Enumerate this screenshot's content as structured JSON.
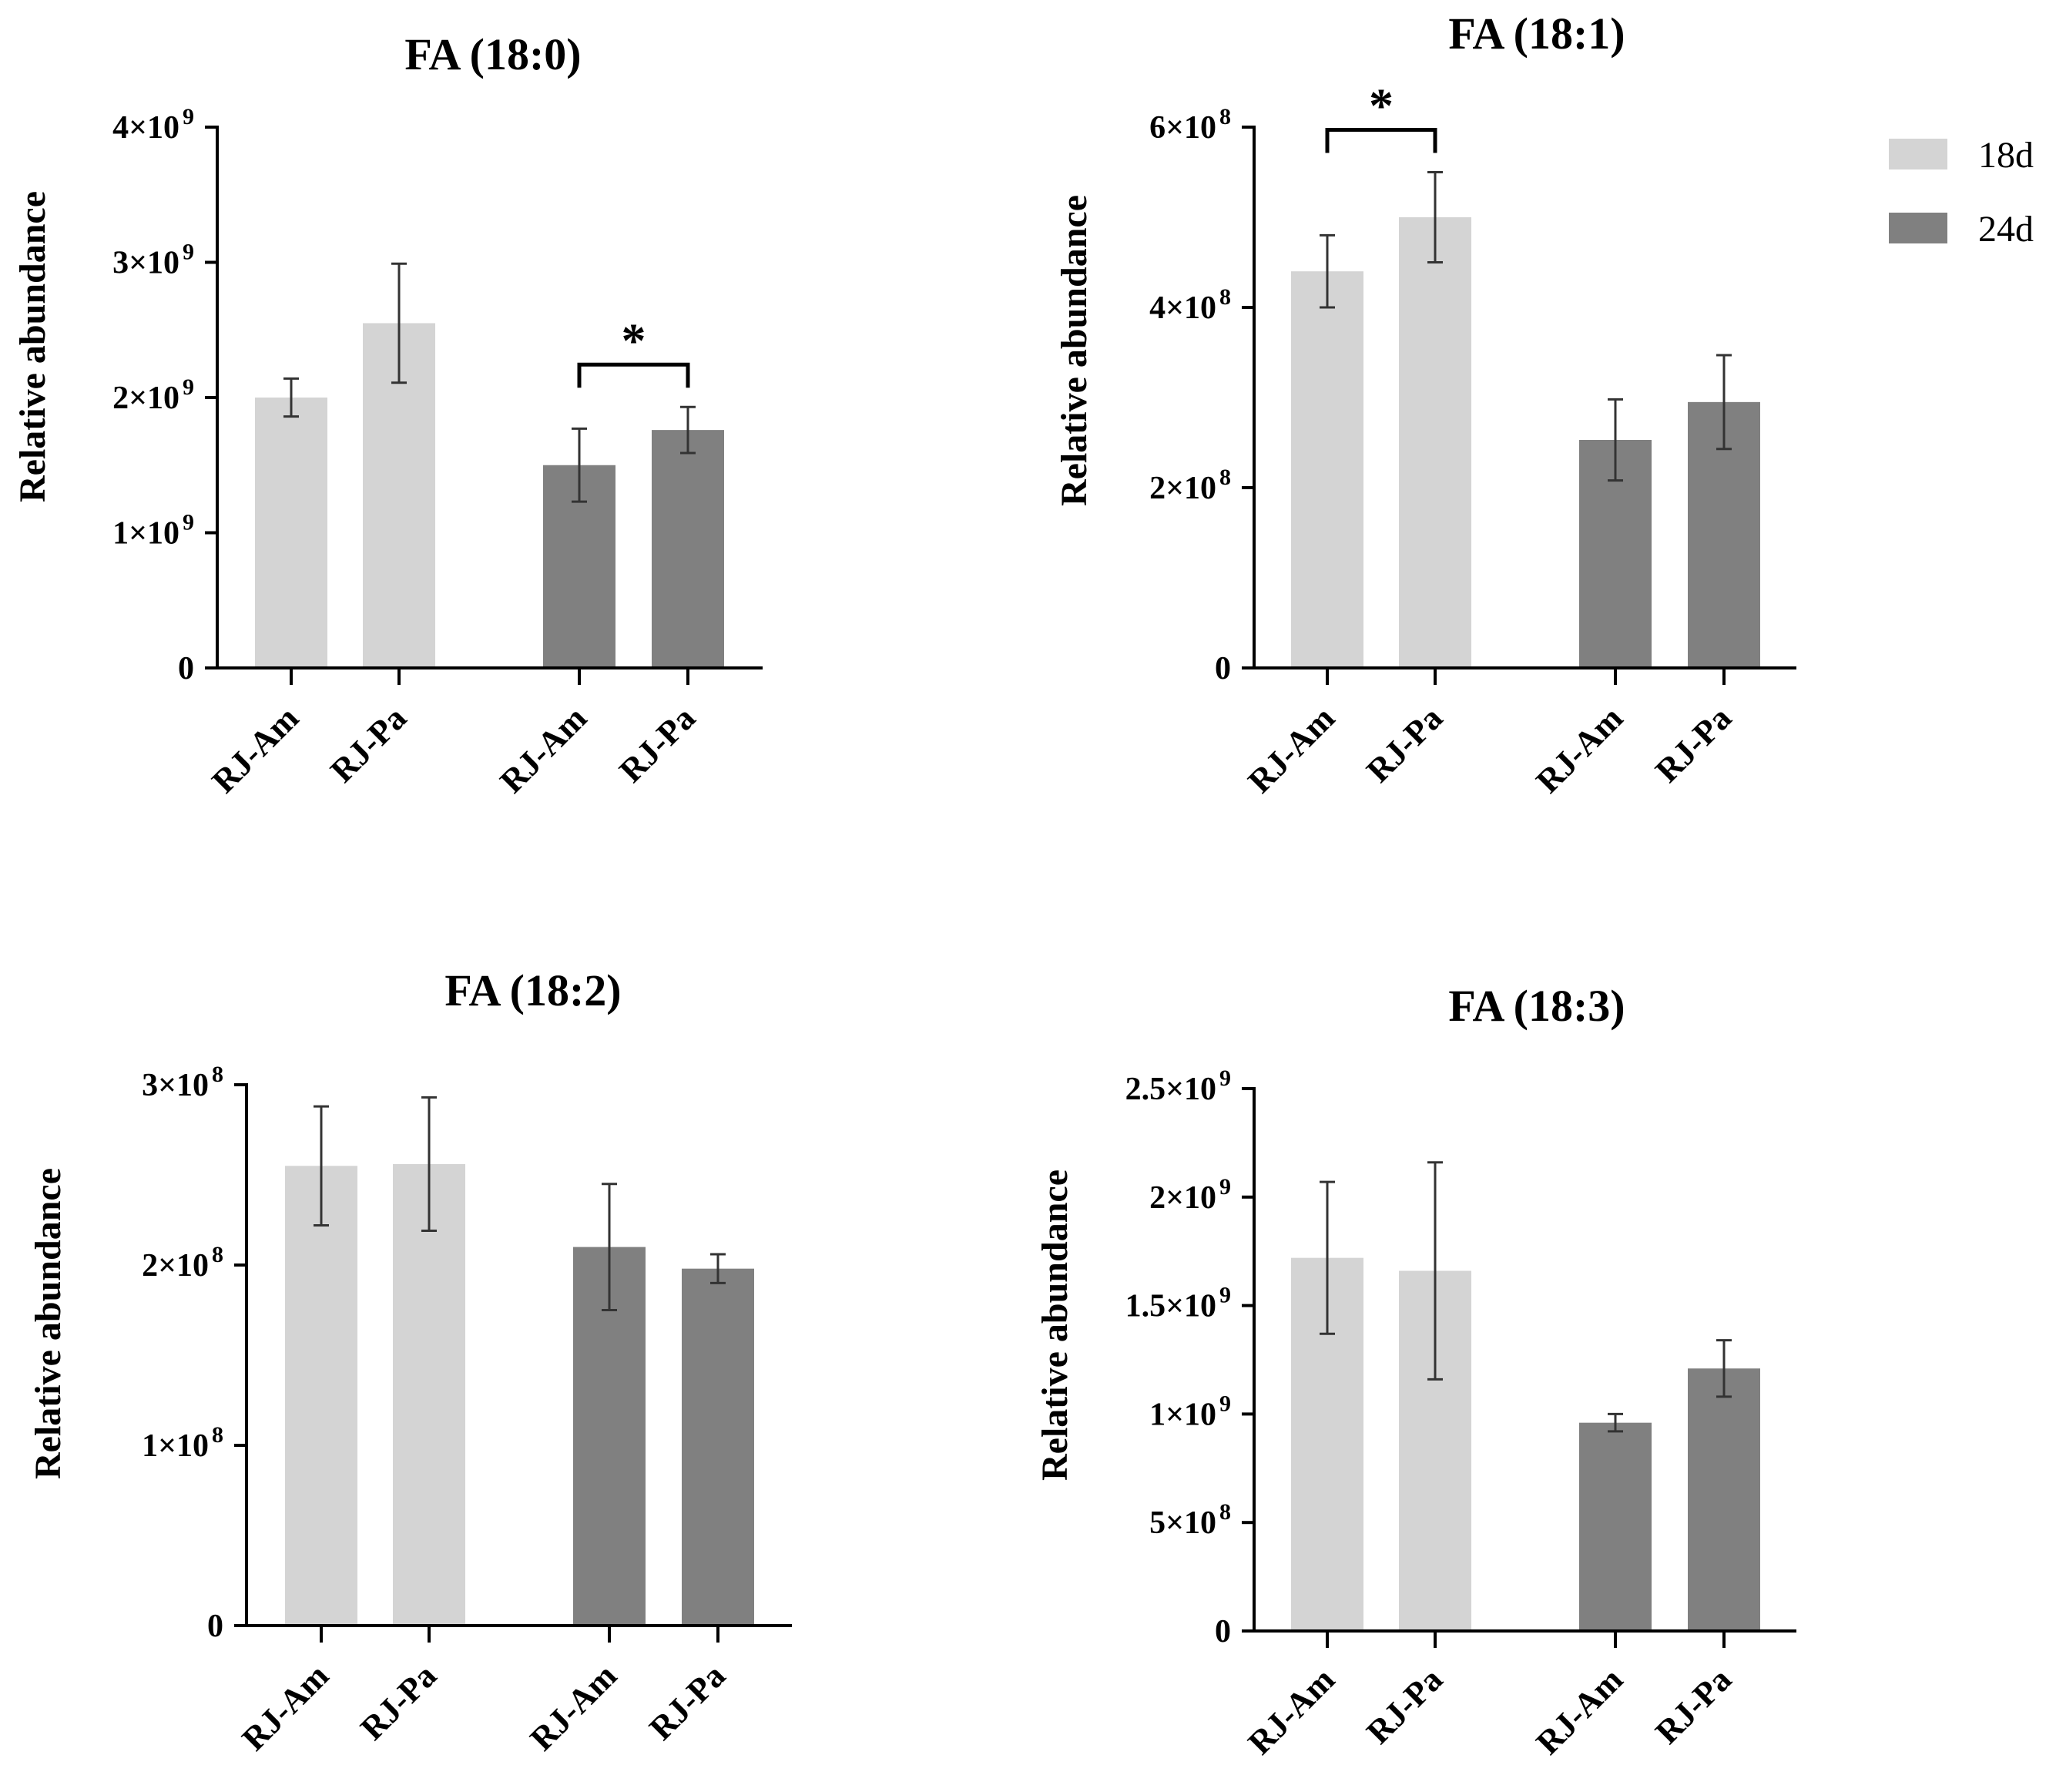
{
  "chart_data": [
    {
      "type": "bar",
      "title": "FA (18:0)",
      "ylabel": "Relative abundance",
      "xlabel": "",
      "categories": [
        "RJ-Am",
        "RJ-Pa",
        "RJ-Am",
        "RJ-Pa"
      ],
      "groups": [
        "18d",
        "18d",
        "24d",
        "24d"
      ],
      "values": [
        2000000000.0,
        2550000000.0,
        1500000000.0,
        1760000000.0
      ],
      "errors": [
        140000000.0,
        440000000.0,
        270000000.0,
        170000000.0
      ],
      "ylim": [
        0,
        4000000000.0
      ],
      "yticks": [
        0,
        1000000000.0,
        2000000000.0,
        3000000000.0,
        4000000000.0
      ],
      "ytick_labels": [
        {
          "mantissa": "0",
          "exponent": ""
        },
        {
          "mantissa": "1×10",
          "exponent": "9"
        },
        {
          "mantissa": "2×10",
          "exponent": "9"
        },
        {
          "mantissa": "3×10",
          "exponent": "9"
        },
        {
          "mantissa": "4×10",
          "exponent": "9"
        }
      ],
      "significance": [
        {
          "between": [
            2,
            3
          ],
          "label": "*"
        }
      ]
    },
    {
      "type": "bar",
      "title": "FA (18:1)",
      "ylabel": "Relative abundance",
      "xlabel": "",
      "categories": [
        "RJ-Am",
        "RJ-Pa",
        "RJ-Am",
        "RJ-Pa"
      ],
      "groups": [
        "18d",
        "18d",
        "24d",
        "24d"
      ],
      "values": [
        440000000.0,
        500000000.0,
        253000000.0,
        295000000.0
      ],
      "errors": [
        40000000.0,
        50000000.0,
        45000000.0,
        52000000.0
      ],
      "ylim": [
        0,
        600000000.0
      ],
      "yticks": [
        0,
        200000000.0,
        400000000.0,
        600000000.0
      ],
      "ytick_labels": [
        {
          "mantissa": "0",
          "exponent": ""
        },
        {
          "mantissa": "2×10",
          "exponent": "8"
        },
        {
          "mantissa": "4×10",
          "exponent": "8"
        },
        {
          "mantissa": "6×10",
          "exponent": "8"
        }
      ],
      "significance": [
        {
          "between": [
            0,
            1
          ],
          "label": "*"
        }
      ]
    },
    {
      "type": "bar",
      "title": "FA (18:2)",
      "ylabel": "Relative abundance",
      "xlabel": "",
      "categories": [
        "RJ-Am",
        "RJ-Pa",
        "RJ-Am",
        "RJ-Pa"
      ],
      "groups": [
        "18d",
        "18d",
        "24d",
        "24d"
      ],
      "values": [
        255000000.0,
        256000000.0,
        210000000.0,
        198000000.0
      ],
      "errors": [
        33000000.0,
        37000000.0,
        35000000.0,
        8000000.0
      ],
      "ylim": [
        0,
        300000000.0
      ],
      "yticks": [
        0,
        100000000.0,
        200000000.0,
        300000000.0
      ],
      "ytick_labels": [
        {
          "mantissa": "0",
          "exponent": ""
        },
        {
          "mantissa": "1×10",
          "exponent": "8"
        },
        {
          "mantissa": "2×10",
          "exponent": "8"
        },
        {
          "mantissa": "3×10",
          "exponent": "8"
        }
      ],
      "significance": []
    },
    {
      "type": "bar",
      "title": "FA (18:3)",
      "ylabel": "Relative abundance",
      "xlabel": "",
      "categories": [
        "RJ-Am",
        "RJ-Pa",
        "RJ-Am",
        "RJ-Pa"
      ],
      "groups": [
        "18d",
        "18d",
        "24d",
        "24d"
      ],
      "values": [
        1720000000.0,
        1660000000.0,
        960000000.0,
        1210000000.0
      ],
      "errors": [
        350000000.0,
        500000000.0,
        40000000.0,
        130000000.0
      ],
      "ylim": [
        0,
        2500000000.0
      ],
      "yticks": [
        0,
        500000000.0,
        1000000000.0,
        1500000000.0,
        2000000000.0,
        2500000000.0
      ],
      "ytick_labels": [
        {
          "mantissa": "0",
          "exponent": ""
        },
        {
          "mantissa": "5×10",
          "exponent": "8"
        },
        {
          "mantissa": "1×10",
          "exponent": "9"
        },
        {
          "mantissa": "1.5×10",
          "exponent": "9"
        },
        {
          "mantissa": "2×10",
          "exponent": "9"
        },
        {
          "mantissa": "2.5×10",
          "exponent": "9"
        }
      ],
      "significance": []
    }
  ],
  "legend": {
    "entries": [
      {
        "label": "18d",
        "color": "#d4d4d4"
      },
      {
        "label": "24d",
        "color": "#808080"
      }
    ]
  },
  "colors": {
    "18d": "#d4d4d4",
    "24d": "#808080",
    "axis": "#000000"
  }
}
